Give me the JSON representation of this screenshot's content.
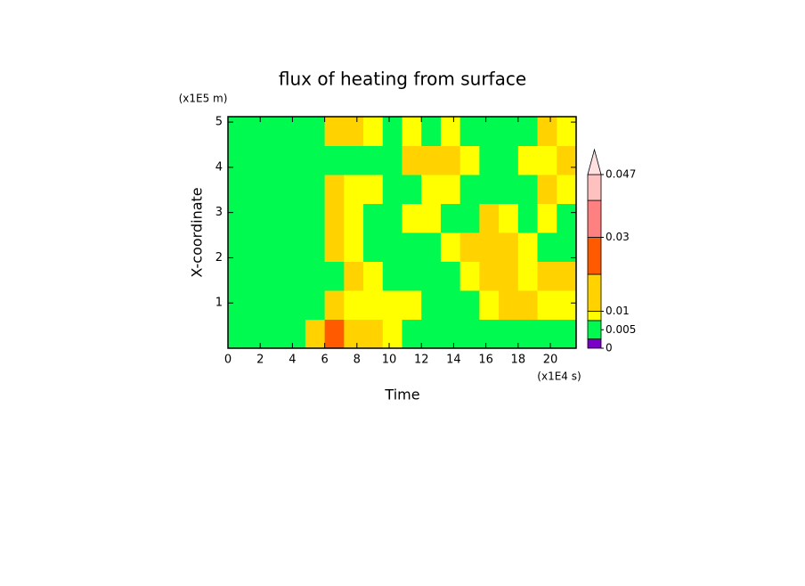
{
  "chart_data": {
    "type": "contour",
    "title": "flux of heating from surface",
    "xlabel": "Time",
    "ylabel": "X-coordinate",
    "x_unit": "(x1E4 s)",
    "y_unit": "(x1E5 m)",
    "xlim": [
      0,
      21.6
    ],
    "ylim": [
      0,
      5.12
    ],
    "xticks": [
      0,
      2,
      4,
      6,
      8,
      10,
      12,
      14,
      16,
      18,
      20
    ],
    "yticks": [
      1,
      2,
      3,
      4,
      5
    ],
    "x": [
      0.6,
      1.8,
      3,
      4.2,
      5.4,
      6.6,
      7.8,
      9,
      10.2,
      11.4,
      12.6,
      13.8,
      15,
      16.2,
      17.4,
      18.6,
      19.8,
      21
    ],
    "y": [
      0.32,
      0.96,
      1.6,
      2.24,
      2.88,
      3.52,
      4.16,
      4.8
    ],
    "z": [
      [
        0.004,
        0.004,
        0.004,
        0.004,
        0.015,
        0.025,
        0.015,
        0.015,
        0.009,
        0.004,
        0.004,
        0.004,
        0.004,
        0.004,
        0.004,
        0.004,
        0.004,
        0.004
      ],
      [
        0.004,
        0.004,
        0.004,
        0.004,
        0.004,
        0.015,
        0.009,
        0.009,
        0.009,
        0.009,
        0.004,
        0.004,
        0.004,
        0.009,
        0.015,
        0.015,
        0.009,
        0.009
      ],
      [
        0.004,
        0.004,
        0.004,
        0.004,
        0.004,
        0.004,
        0.015,
        0.009,
        0.004,
        0.004,
        0.004,
        0.004,
        0.009,
        0.015,
        0.015,
        0.009,
        0.015,
        0.015
      ],
      [
        0.004,
        0.004,
        0.004,
        0.004,
        0.004,
        0.015,
        0.009,
        0.004,
        0.004,
        0.004,
        0.004,
        0.009,
        0.015,
        0.015,
        0.015,
        0.009,
        0.004,
        0.004
      ],
      [
        0.004,
        0.004,
        0.004,
        0.004,
        0.004,
        0.015,
        0.009,
        0.004,
        0.004,
        0.009,
        0.009,
        0.004,
        0.004,
        0.015,
        0.009,
        0.004,
        0.009,
        0.004
      ],
      [
        0.004,
        0.004,
        0.004,
        0.004,
        0.004,
        0.015,
        0.009,
        0.009,
        0.004,
        0.004,
        0.009,
        0.009,
        0.004,
        0.004,
        0.004,
        0.004,
        0.015,
        0.009
      ],
      [
        0.004,
        0.004,
        0.004,
        0.004,
        0.004,
        0.004,
        0.004,
        0.004,
        0.004,
        0.015,
        0.015,
        0.015,
        0.009,
        0.004,
        0.004,
        0.009,
        0.009,
        0.015
      ],
      [
        0.004,
        0.004,
        0.004,
        0.004,
        0.004,
        0.015,
        0.015,
        0.009,
        0.004,
        0.009,
        0.004,
        0.009,
        0.004,
        0.004,
        0.004,
        0.004,
        0.015,
        0.009
      ]
    ],
    "colorbar": {
      "lim": [
        0,
        0.047
      ],
      "ticks": [
        0,
        0.005,
        0.01,
        0.03,
        0.047
      ],
      "boundaries": [
        0,
        0.0025,
        0.0075,
        0.01,
        0.02,
        0.03,
        0.04,
        0.047
      ],
      "colors": [
        "#7a00c8",
        "#00fa50",
        "#ffff00",
        "#ffd200",
        "#ff5a00",
        "#ff8080",
        "#ffc0c0"
      ],
      "extend_color": "#ffe0e0"
    }
  }
}
